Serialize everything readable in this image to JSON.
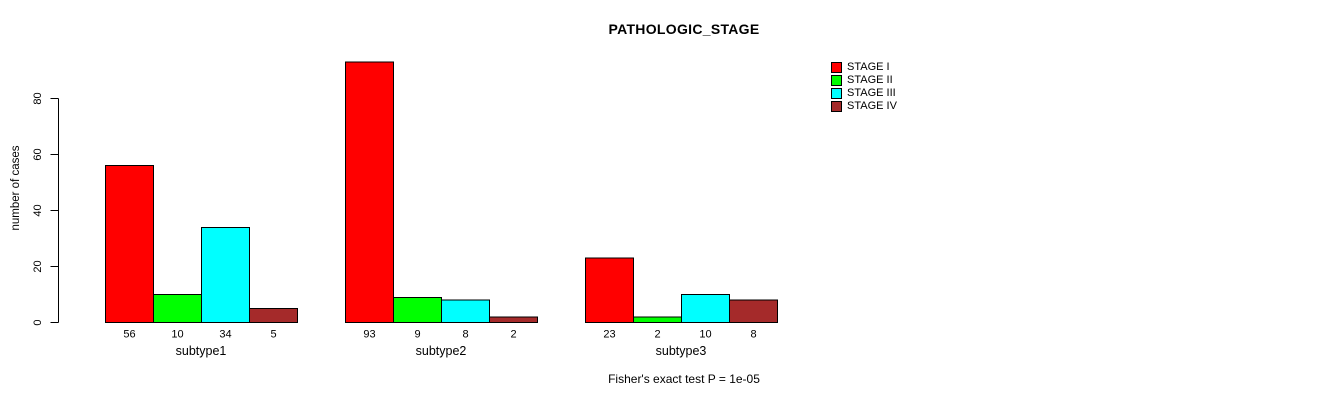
{
  "chart_data": {
    "type": "bar",
    "title": "PATHOLOGIC_STAGE",
    "ylabel": "number of cases",
    "xlabel": "",
    "yticks": [
      0,
      20,
      40,
      60,
      80
    ],
    "ylim": [
      0,
      93
    ],
    "grid": false,
    "show_bar_value_labels": true,
    "categories": [
      "subtype1",
      "subtype2",
      "subtype3"
    ],
    "series": [
      {
        "name": "STAGE I",
        "color": "#FF0000",
        "values": [
          56,
          93,
          23
        ]
      },
      {
        "name": "STAGE II",
        "color": "#00FF00",
        "values": [
          10,
          9,
          2
        ]
      },
      {
        "name": "STAGE III",
        "color": "#00FFFF",
        "values": [
          34,
          8,
          10
        ]
      },
      {
        "name": "STAGE IV",
        "color": "#A52A2A",
        "values": [
          5,
          2,
          8
        ]
      }
    ],
    "legend_position": "top-right",
    "caption": "Fisher's exact test P = 1e-05",
    "axis_color": "#000000",
    "bar_border_color": "#000000",
    "background": "#FFFFFF"
  }
}
